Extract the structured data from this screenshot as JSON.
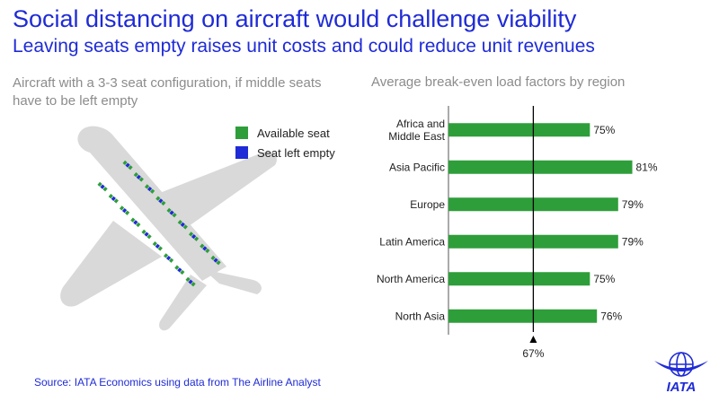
{
  "header": {
    "title": "Social distancing on aircraft would challenge viability",
    "subtitle": "Leaving seats empty raises unit costs and could reduce unit revenues"
  },
  "left_panel": {
    "caption": "Aircraft with a 3-3 seat configuration, if middle seats have to be left empty",
    "legend": [
      {
        "label": "Available seat",
        "color": "#2e9e3a"
      },
      {
        "label": "Seat left empty",
        "color": "#1f2bd6"
      }
    ]
  },
  "right_panel": {
    "caption": "Average break-even load factors by region"
  },
  "chart_data": {
    "type": "bar",
    "orientation": "horizontal",
    "categories": [
      [
        "Africa and",
        "Middle East"
      ],
      [
        "Asia Pacific"
      ],
      [
        "Europe"
      ],
      [
        "Latin America"
      ],
      [
        "North America"
      ],
      [
        "North Asia"
      ]
    ],
    "values": [
      75,
      81,
      79,
      79,
      75,
      76
    ],
    "value_labels": [
      "75%",
      "81%",
      "79%",
      "79%",
      "75%",
      "76%"
    ],
    "reference_line": {
      "value": 67,
      "label": "67%"
    },
    "xlim": [
      55,
      85
    ],
    "bar_color": "#2e9e3a"
  },
  "footer": {
    "source": "Source: IATA Economics using data from The Airline Analyst",
    "logo_text": "IATA"
  }
}
